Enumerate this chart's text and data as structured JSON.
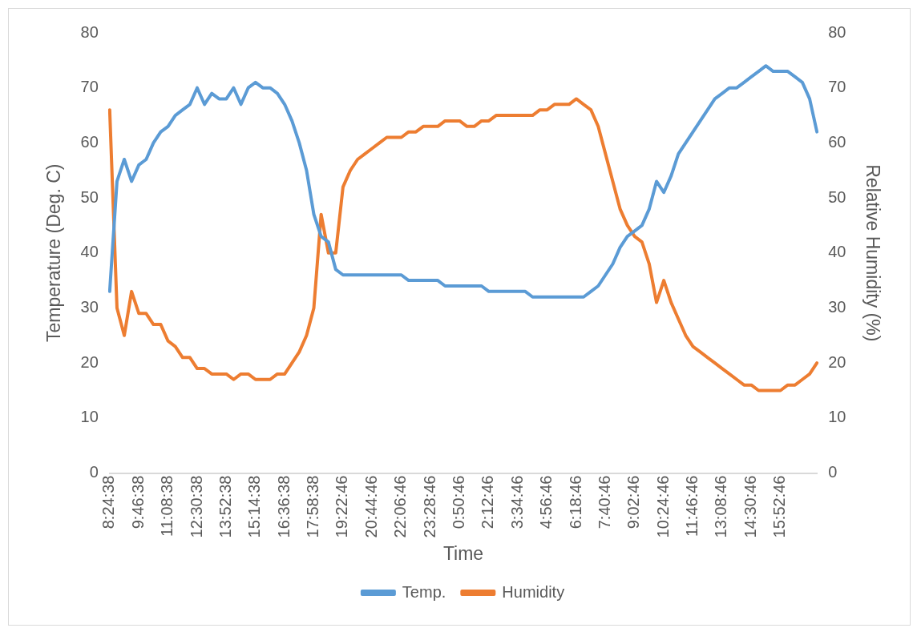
{
  "chart_data": {
    "type": "line",
    "xlabel": "Time",
    "ylabel": "Temperature (Deg. C)",
    "y2label": "Relative Humidity (%)",
    "categories": [
      "8:24:38",
      null,
      null,
      null,
      "9:46:38",
      null,
      null,
      null,
      "11:08:38",
      null,
      null,
      null,
      "12:30:38",
      null,
      null,
      null,
      "13:52:38",
      null,
      null,
      null,
      "15:14:38",
      null,
      null,
      null,
      "16:36:38",
      null,
      null,
      null,
      "17:58:38",
      null,
      null,
      null,
      "19:22:46",
      null,
      null,
      null,
      "20:44:46",
      null,
      null,
      null,
      "22:06:46",
      null,
      null,
      null,
      "23:28:46",
      null,
      null,
      null,
      "0:50:46",
      null,
      null,
      null,
      "2:12:46",
      null,
      null,
      null,
      "3:34:46",
      null,
      null,
      null,
      "4:56:46",
      null,
      null,
      null,
      "6:18:46",
      null,
      null,
      null,
      "7:40:46",
      null,
      null,
      null,
      "9:02:46",
      null,
      null,
      null,
      "10:24:46",
      null,
      null,
      null,
      "11:46:46",
      null,
      null,
      null,
      "13:08:46",
      null,
      null,
      null,
      "14:30:46",
      null,
      null,
      null,
      "15:52:46",
      null,
      null,
      null,
      null,
      null
    ],
    "series": [
      {
        "name": "Temp.",
        "color": "#5b9bd5",
        "values": [
          33,
          53,
          57,
          53,
          56,
          57,
          60,
          62,
          63,
          65,
          66,
          67,
          70,
          67,
          69,
          68,
          68,
          70,
          67,
          70,
          71,
          70,
          70,
          69,
          67,
          64,
          60,
          55,
          47,
          43,
          42,
          37,
          36,
          36,
          36,
          36,
          36,
          36,
          36,
          36,
          36,
          35,
          35,
          35,
          35,
          35,
          34,
          34,
          34,
          34,
          34,
          34,
          33,
          33,
          33,
          33,
          33,
          33,
          32,
          32,
          32,
          32,
          32,
          32,
          32,
          32,
          33,
          34,
          36,
          38,
          41,
          43,
          44,
          45,
          48,
          53,
          51,
          54,
          58,
          60,
          62,
          64,
          66,
          68,
          69,
          70,
          70,
          71,
          72,
          73,
          74,
          73,
          73,
          73,
          72,
          71,
          68,
          62
        ]
      },
      {
        "name": "Humidity",
        "color": "#ed7d31",
        "axis": "y2",
        "values": [
          66,
          30,
          25,
          33,
          29,
          29,
          27,
          27,
          24,
          23,
          21,
          21,
          19,
          19,
          18,
          18,
          18,
          17,
          18,
          18,
          17,
          17,
          17,
          18,
          18,
          20,
          22,
          25,
          30,
          47,
          40,
          40,
          52,
          55,
          57,
          58,
          59,
          60,
          61,
          61,
          61,
          62,
          62,
          63,
          63,
          63,
          64,
          64,
          64,
          63,
          63,
          64,
          64,
          65,
          65,
          65,
          65,
          65,
          65,
          66,
          66,
          67,
          67,
          67,
          68,
          67,
          66,
          63,
          58,
          53,
          48,
          45,
          43,
          42,
          38,
          31,
          35,
          31,
          28,
          25,
          23,
          22,
          21,
          20,
          19,
          18,
          17,
          16,
          16,
          15,
          15,
          15,
          15,
          16,
          16,
          17,
          18,
          20
        ]
      }
    ],
    "ylim": [
      0,
      80
    ],
    "yticks": [
      0,
      10,
      20,
      30,
      40,
      50,
      60,
      70,
      80
    ],
    "y2lim": [
      0,
      80
    ],
    "y2ticks": [
      0,
      10,
      20,
      30,
      40,
      50,
      60,
      70,
      80
    ],
    "grid": false,
    "legend": "bottom",
    "marker": "none",
    "line_style": "solid"
  }
}
